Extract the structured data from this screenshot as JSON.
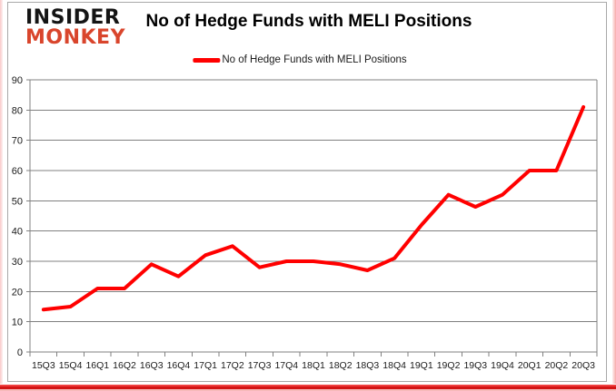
{
  "logo": {
    "line1": "INSIDER",
    "line2": "MONKEY"
  },
  "header": {
    "title": "No of Hedge Funds with MELI Positions"
  },
  "legend": {
    "label": "No of Hedge Funds with MELI Positions"
  },
  "colors": {
    "line": "#ff0000",
    "grid": "#808080",
    "axis_text": "#1a1a1a",
    "title_text": "#000000",
    "logo_black": "#141414",
    "logo_red": "#d9452c",
    "frame_red": "#d31515",
    "border_gray": "#a8a8a8"
  },
  "chart_data": {
    "type": "line",
    "title": "No of Hedge Funds with MELI Positions",
    "series_name": "No of Hedge Funds with MELI Positions",
    "categories": [
      "15Q3",
      "15Q4",
      "16Q1",
      "16Q2",
      "16Q3",
      "16Q4",
      "17Q1",
      "17Q2",
      "17Q3",
      "17Q4",
      "18Q1",
      "18Q2",
      "18Q3",
      "18Q4",
      "19Q1",
      "19Q2",
      "19Q3",
      "19Q4",
      "20Q1",
      "20Q2",
      "20Q3"
    ],
    "values": [
      14,
      15,
      21,
      21,
      29,
      25,
      32,
      35,
      28,
      30,
      30,
      29,
      27,
      31,
      42,
      52,
      48,
      52,
      60,
      60,
      81
    ],
    "xlabel": "",
    "ylabel": "",
    "ylim": [
      0,
      90
    ],
    "yticks": [
      0,
      10,
      20,
      30,
      40,
      50,
      60,
      70,
      80,
      90
    ],
    "grid": true,
    "legend_position": "top-center",
    "line_width": 4
  }
}
